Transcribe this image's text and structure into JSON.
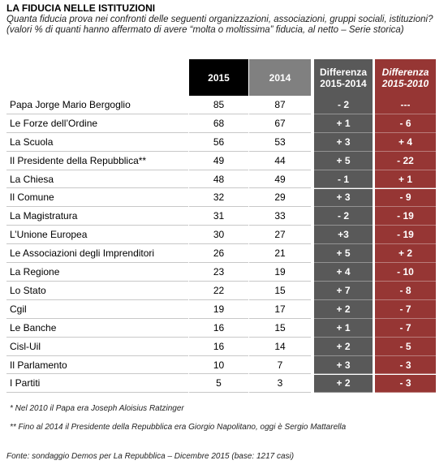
{
  "header": {
    "title": "LA FIDUCIA NELLE ISTITUZIONI",
    "subtitle": "Quanta fiducia prova nei confronti delle seguenti organizzazioni, associazioni, gruppi sociali, istituzioni? (valori % di quanti hanno affermato di avere “molta o moltissima” fiducia, al netto – Serie storica)"
  },
  "table": {
    "columns": [
      "2015",
      "2014",
      "Differenza 2015-2014",
      "Differenza 2015-2010"
    ],
    "rows": [
      [
        "Papa Jorge Mario Bergoglio",
        85,
        87,
        "- 2",
        "---"
      ],
      [
        "Le Forze dell’Ordine",
        68,
        67,
        "+ 1",
        "- 6"
      ],
      [
        "La Scuola",
        56,
        53,
        "+ 3",
        "+ 4"
      ],
      [
        "Il Presidente della Repubblica**",
        49,
        44,
        "+ 5",
        "- 22"
      ],
      [
        "La Chiesa",
        48,
        49,
        "- 1",
        "+ 1"
      ],
      [
        "Il Comune",
        32,
        29,
        "+ 3",
        "- 9"
      ],
      [
        "La Magistratura",
        31,
        33,
        "- 2",
        "- 19"
      ],
      [
        "L’Unione Europea",
        30,
        27,
        "+3",
        "- 19"
      ],
      [
        "Le Associazioni degli Imprenditori",
        26,
        21,
        "+ 5",
        "+ 2"
      ],
      [
        "La Regione",
        23,
        19,
        "+ 4",
        "- 10"
      ],
      [
        "Lo Stato",
        22,
        15,
        "+ 7",
        "- 8"
      ],
      [
        "Cgil",
        19,
        17,
        "+ 2",
        "- 7"
      ],
      [
        "Le Banche",
        16,
        15,
        "+ 1",
        "- 7"
      ],
      [
        "Cisl-Uil",
        16,
        14,
        "+ 2",
        "- 5"
      ],
      [
        "Il Parlamento",
        10,
        7,
        "+ 3",
        "- 3"
      ],
      [
        "I Partiti",
        5,
        3,
        "+ 2",
        "- 3"
      ]
    ]
  },
  "footnotes": [
    "* Nel 2010 il Papa era Joseph Aloisius Ratzinger",
    "** Fino al 2014 il Presidente della Repubblica era Giorgio Napolitano, oggi è Sergio Mattarella"
  ],
  "source": "Fonte: sondaggio Demos per La Repubblica – Dicembre 2015 (base: 1217 casi)"
}
